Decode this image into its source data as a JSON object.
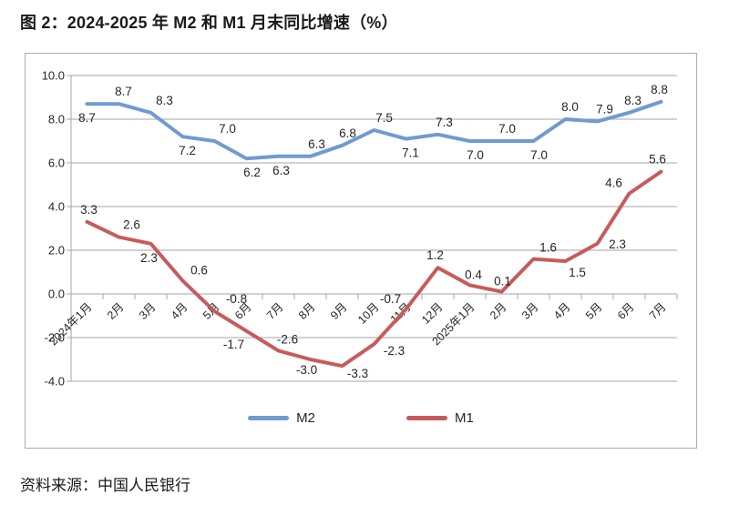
{
  "figure": {
    "title": "图 2：2024-2025 年 M2 和 M1 月末同比增速（%）",
    "source": "资料来源：中国人民银行"
  },
  "chart_data": {
    "type": "line",
    "title": "2024-2025 年 M2 和 M1 月末同比增速（%）",
    "categories": [
      "2024年1月",
      "2月",
      "3月",
      "4月",
      "5月",
      "6月",
      "7月",
      "8月",
      "9月",
      "10月",
      "11月",
      "12月",
      "2025年1月",
      "2月",
      "3月",
      "4月",
      "5月",
      "6月",
      "7月"
    ],
    "series": [
      {
        "name": "M2",
        "color": "#6F9BD1",
        "values": [
          8.7,
          8.7,
          8.3,
          7.2,
          7.0,
          6.2,
          6.3,
          6.3,
          6.8,
          7.5,
          7.1,
          7.3,
          7.0,
          7.0,
          7.0,
          8.0,
          7.9,
          8.3,
          8.8
        ]
      },
      {
        "name": "M1",
        "color": "#C75B5B",
        "values": [
          3.3,
          2.6,
          2.3,
          0.6,
          -0.8,
          -1.7,
          -2.6,
          -3.0,
          -3.3,
          -2.3,
          -0.7,
          1.2,
          0.4,
          0.1,
          1.6,
          1.5,
          2.3,
          4.6,
          5.6
        ]
      }
    ],
    "xlabel": "",
    "ylabel": "",
    "ylim": [
      -4,
      10
    ],
    "yticks": [
      10,
      8,
      6,
      4,
      2,
      0,
      -2,
      -4
    ],
    "ytick_labels": [
      "10.0",
      "8.0",
      "6.0",
      "4.0",
      "2.0",
      "0.0",
      "-2.0",
      "-4.0"
    ],
    "grid": true,
    "data_labels": true,
    "legend_position": "bottom-center",
    "grid_color": "#A6A6A6",
    "text_color": "#262626",
    "label_offsets": [
      [
        [
          0,
          20
        ],
        [
          5,
          -9
        ],
        [
          15,
          -9
        ],
        [
          5,
          20
        ],
        [
          14,
          -9
        ],
        [
          6,
          20
        ],
        [
          3,
          20
        ],
        [
          7,
          -9
        ],
        [
          6,
          -9
        ],
        [
          11,
          -9
        ],
        [
          5,
          20
        ],
        [
          7,
          -9
        ],
        [
          6,
          20
        ],
        [
          6,
          -9
        ],
        [
          6,
          20
        ],
        [
          5,
          -9
        ],
        [
          8,
          -9
        ],
        [
          4,
          -9
        ],
        [
          -2,
          -9
        ]
      ],
      [
        [
          2,
          -9
        ],
        [
          14,
          -9
        ],
        [
          -2,
          20
        ],
        [
          18,
          -7
        ],
        [
          24,
          -9
        ],
        [
          -14,
          19
        ],
        [
          10,
          -8
        ],
        [
          -4,
          16
        ],
        [
          17,
          13
        ],
        [
          22,
          12
        ],
        [
          -17,
          -7
        ],
        [
          -3,
          -9
        ],
        [
          4,
          -7
        ],
        [
          1,
          -7
        ],
        [
          16,
          -8
        ],
        [
          13,
          17
        ],
        [
          22,
          5
        ],
        [
          -17,
          -7
        ],
        [
          -4,
          -9
        ]
      ]
    ]
  }
}
